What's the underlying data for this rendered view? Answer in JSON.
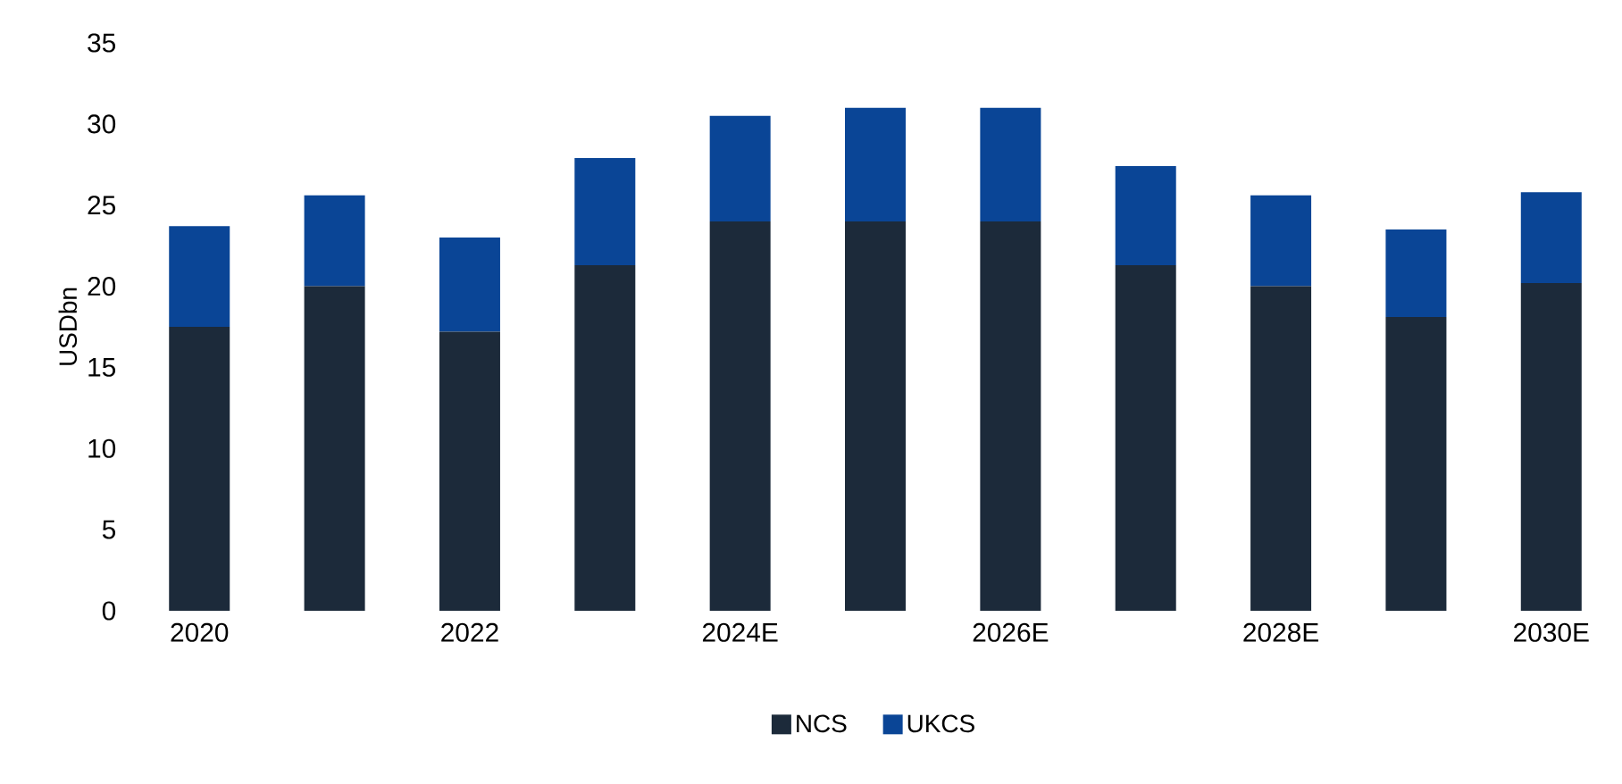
{
  "chart_data": {
    "type": "bar",
    "stacked": true,
    "ylabel": "USDbn",
    "categories": [
      "2020",
      null,
      "2022",
      null,
      "2024E",
      null,
      "2026E",
      null,
      "2028E",
      null,
      "2030E"
    ],
    "series": [
      {
        "name": "NCS",
        "color": "#1c2a3a",
        "values": [
          17.5,
          20.0,
          17.2,
          21.3,
          24.0,
          24.0,
          24.0,
          21.3,
          20.0,
          18.1,
          20.2
        ]
      },
      {
        "name": "UKCS",
        "color": "#0a4596",
        "values": [
          6.2,
          5.6,
          5.8,
          6.6,
          6.5,
          7.0,
          7.0,
          6.1,
          5.6,
          5.4,
          5.6
        ]
      }
    ],
    "ylim": [
      0,
      35
    ],
    "yticks": [
      0,
      5,
      10,
      15,
      20,
      25,
      30,
      35
    ],
    "grid": false,
    "legend": "bottom"
  }
}
